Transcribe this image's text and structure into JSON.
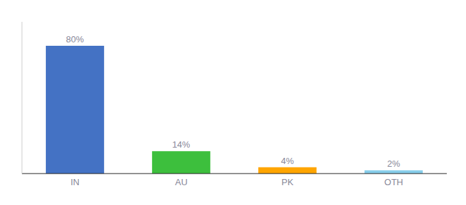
{
  "chart_data": {
    "type": "bar",
    "categories": [
      "IN",
      "AU",
      "PK",
      "OTH"
    ],
    "values": [
      80,
      14,
      4,
      2
    ],
    "value_labels": [
      "80%",
      "14%",
      "4%",
      "2%"
    ],
    "colors": [
      "#4472C4",
      "#3DBF3D",
      "#FFA500",
      "#87CEEB"
    ],
    "ylim": [
      0,
      95
    ],
    "data_labels": true,
    "tick_labels": "x",
    "grid": false
  }
}
